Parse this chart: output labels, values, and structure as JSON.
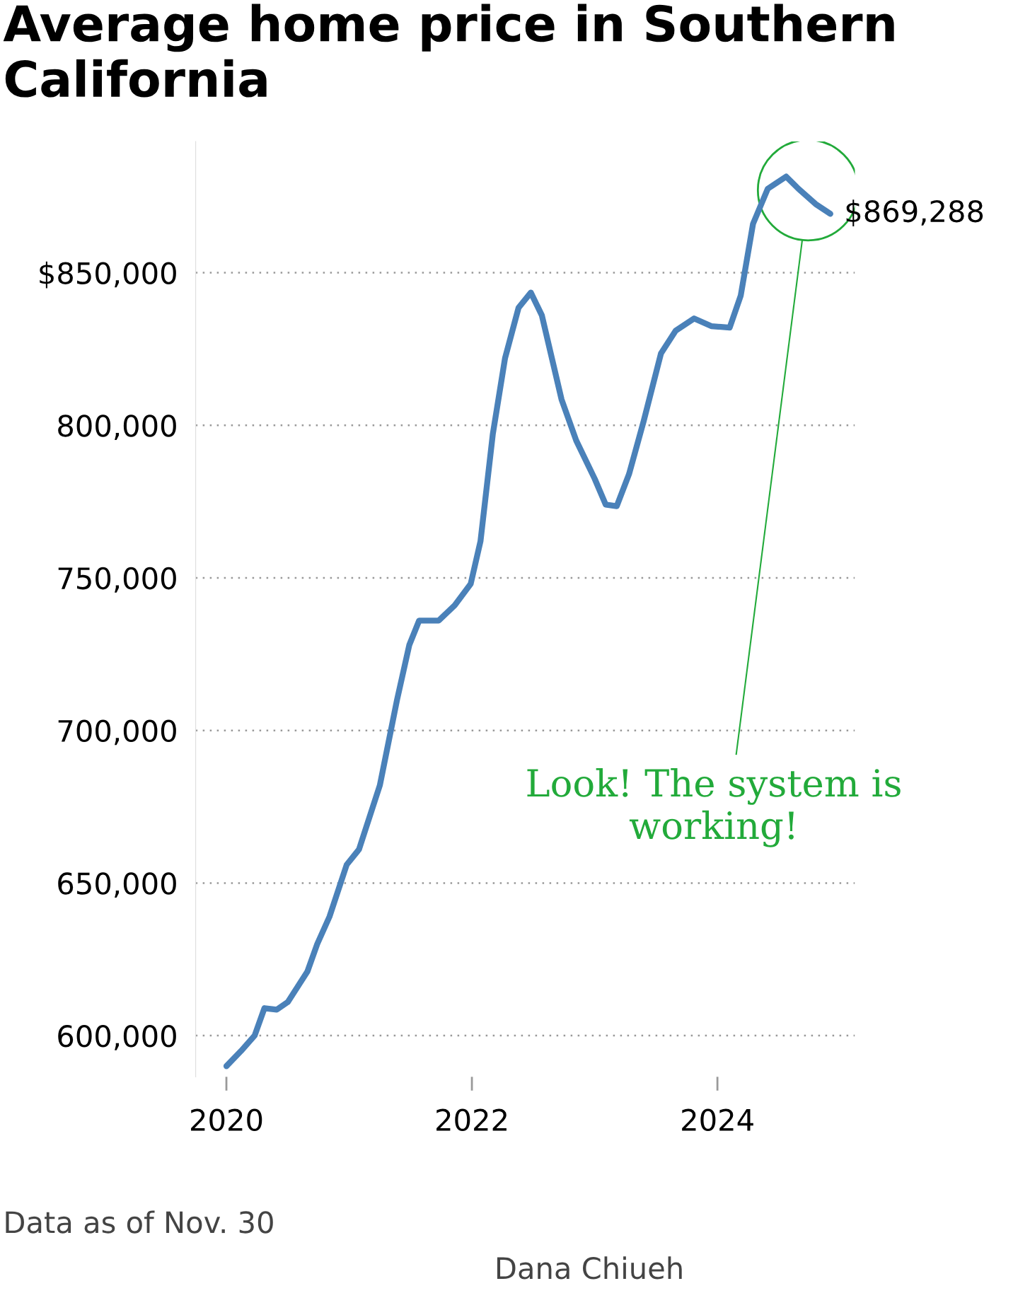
{
  "chart_data": {
    "type": "line",
    "title": "Average home price in Southern California",
    "x": [
      2020.0,
      2020.12,
      2020.23,
      2020.31,
      2020.41,
      2020.5,
      2020.66,
      2020.74,
      2020.84,
      2020.98,
      2021.08,
      2021.25,
      2021.39,
      2021.49,
      2021.57,
      2021.73,
      2021.86,
      2021.99,
      2022.07,
      2022.17,
      2022.27,
      2022.38,
      2022.48,
      2022.57,
      2022.73,
      2022.85,
      2023.0,
      2023.09,
      2023.18,
      2023.28,
      2023.4,
      2023.54,
      2023.66,
      2023.81,
      2023.95,
      2024.1,
      2024.19,
      2024.29,
      2024.41,
      2024.56,
      2024.66,
      2024.8,
      2024.92
    ],
    "series": [
      {
        "color": "#4a81b9",
        "values": [
          590000,
          595000,
          600000,
          609000,
          608500,
          611000,
          621000,
          630000,
          639000,
          656000,
          661000,
          682000,
          710000,
          728000,
          736000,
          736000,
          741000,
          748000,
          762000,
          797000,
          822000,
          838500,
          843500,
          836000,
          808500,
          795000,
          782500,
          774000,
          773500,
          784000,
          801500,
          823500,
          831000,
          835000,
          832500,
          832000,
          842500,
          866000,
          877500,
          881500,
          877500,
          872500,
          869288
        ]
      }
    ],
    "xlim": [
      2019.75,
      2025.12
    ],
    "ylim": [
      586500,
      893000
    ],
    "xticks": [
      2020,
      2022,
      2024
    ],
    "yticks": [
      {
        "value": 600000,
        "label": "600,000"
      },
      {
        "value": 650000,
        "label": "650,000"
      },
      {
        "value": 700000,
        "label": "700,000"
      },
      {
        "value": 750000,
        "label": "750,000"
      },
      {
        "value": 800000,
        "label": "800,000"
      },
      {
        "value": 850000,
        "label": "$850,000"
      }
    ],
    "grid": "y",
    "line_style": "solid",
    "marker": "none",
    "annotations": [
      {
        "text": "$869,288",
        "x": 2024.92,
        "y": 869288
      },
      "Look! The system is working!",
      "Data as of Nov. 30",
      "Dana Chiueh"
    ]
  }
}
